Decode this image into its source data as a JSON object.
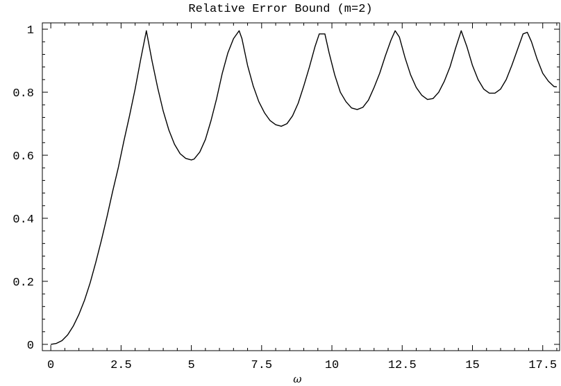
{
  "chart_data": {
    "type": "line",
    "title": "Relative Error Bound (m=2)",
    "xlabel": "ω",
    "ylabel": "",
    "xlim": [
      -0.3,
      18.1
    ],
    "ylim": [
      -0.02,
      1.02
    ],
    "x_ticks": [
      0,
      2.5,
      5,
      7.5,
      10,
      12.5,
      15,
      17.5
    ],
    "x_tick_labels": [
      "0",
      "2.5",
      "5",
      "7.5",
      "10",
      "12.5",
      "15",
      "17.5"
    ],
    "y_ticks": [
      0,
      0.2,
      0.4,
      0.6,
      0.8,
      1
    ],
    "y_tick_labels": [
      "0",
      "0.2",
      "0.4",
      "0.6",
      "0.8",
      "1"
    ],
    "grid": false,
    "legend": "none",
    "series": [
      {
        "color": "#000000",
        "x": [
          0,
          0.2,
          0.4,
          0.6,
          0.8,
          1.0,
          1.2,
          1.4,
          1.6,
          1.8,
          2.0,
          2.2,
          2.4,
          2.6,
          2.8,
          3.0,
          3.2,
          3.4,
          3.6,
          3.8,
          4.0,
          4.2,
          4.4,
          4.6,
          4.8,
          5.0,
          5.1,
          5.3,
          5.5,
          5.7,
          5.9,
          6.1,
          6.3,
          6.5,
          6.7,
          6.8,
          7.0,
          7.2,
          7.4,
          7.6,
          7.8,
          8.0,
          8.2,
          8.4,
          8.6,
          8.8,
          9.0,
          9.2,
          9.4,
          9.55,
          9.75,
          9.9,
          10.1,
          10.3,
          10.5,
          10.7,
          10.9,
          11.1,
          11.3,
          11.5,
          11.7,
          11.9,
          12.1,
          12.25,
          12.4,
          12.6,
          12.8,
          13.0,
          13.2,
          13.4,
          13.6,
          13.8,
          14.0,
          14.2,
          14.4,
          14.6,
          14.8,
          15.0,
          15.2,
          15.4,
          15.6,
          15.8,
          16.0,
          16.2,
          16.4,
          16.6,
          16.8,
          16.95,
          17.1,
          17.3,
          17.5,
          17.7,
          17.9,
          18.0
        ],
        "y": [
          0,
          0.003,
          0.012,
          0.03,
          0.058,
          0.095,
          0.14,
          0.195,
          0.26,
          0.33,
          0.405,
          0.485,
          0.56,
          0.645,
          0.725,
          0.81,
          0.905,
          0.995,
          0.9,
          0.815,
          0.74,
          0.68,
          0.635,
          0.605,
          0.59,
          0.585,
          0.588,
          0.61,
          0.65,
          0.71,
          0.78,
          0.86,
          0.925,
          0.97,
          0.995,
          0.97,
          0.885,
          0.82,
          0.77,
          0.735,
          0.71,
          0.697,
          0.692,
          0.7,
          0.725,
          0.765,
          0.82,
          0.88,
          0.945,
          0.985,
          0.985,
          0.925,
          0.855,
          0.8,
          0.77,
          0.75,
          0.745,
          0.752,
          0.775,
          0.815,
          0.86,
          0.915,
          0.965,
          0.995,
          0.975,
          0.91,
          0.855,
          0.815,
          0.79,
          0.777,
          0.78,
          0.8,
          0.835,
          0.88,
          0.94,
          0.995,
          0.945,
          0.885,
          0.84,
          0.81,
          0.797,
          0.797,
          0.81,
          0.84,
          0.885,
          0.935,
          0.985,
          0.99,
          0.96,
          0.905,
          0.86,
          0.835,
          0.818,
          0.817
        ]
      }
    ]
  }
}
